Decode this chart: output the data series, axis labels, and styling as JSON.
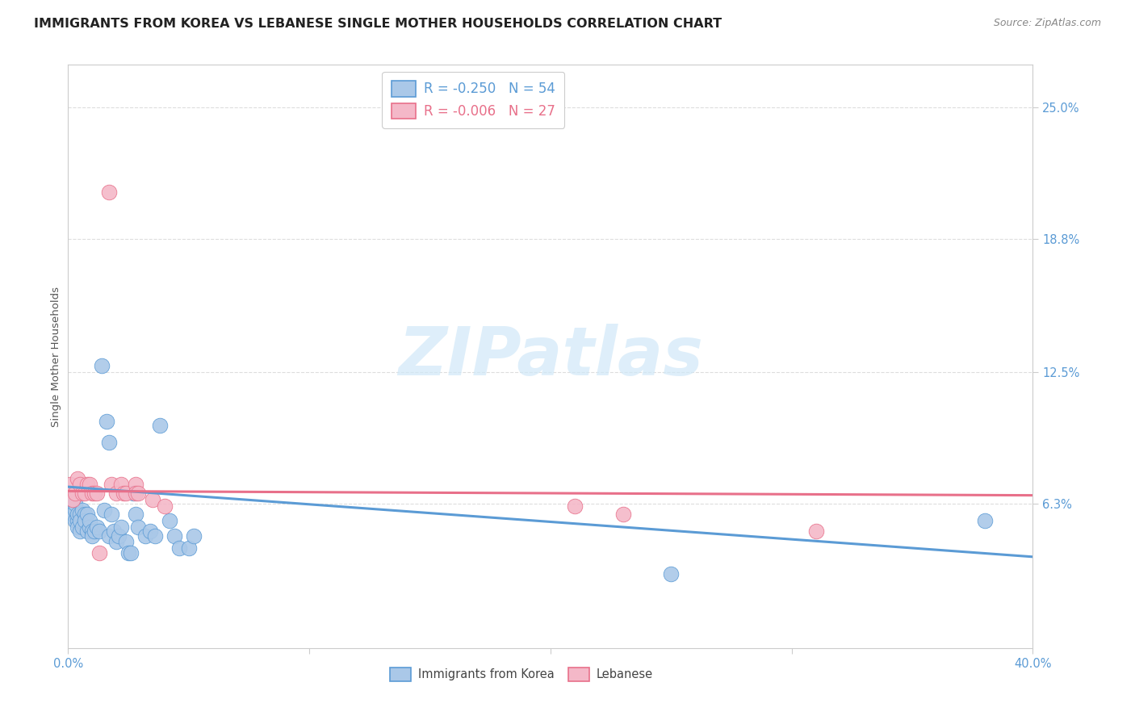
{
  "title": "IMMIGRANTS FROM KOREA VS LEBANESE SINGLE MOTHER HOUSEHOLDS CORRELATION CHART",
  "source": "Source: ZipAtlas.com",
  "ylabel": "Single Mother Households",
  "xlim": [
    0.0,
    0.4
  ],
  "ylim": [
    -0.005,
    0.27
  ],
  "yticks": [
    0.063,
    0.125,
    0.188,
    0.25
  ],
  "ytick_labels": [
    "6.3%",
    "12.5%",
    "18.8%",
    "25.0%"
  ],
  "xticks": [
    0.0,
    0.1,
    0.2,
    0.3,
    0.4
  ],
  "xtick_labels": [
    "0.0%",
    "",
    "",
    "",
    "40.0%"
  ],
  "legend_korea_label": "R = -0.250   N = 54",
  "legend_leb_label": "R = -0.006   N = 27",
  "korea_scatter": [
    [
      0.001,
      0.068
    ],
    [
      0.001,
      0.062
    ],
    [
      0.002,
      0.06
    ],
    [
      0.002,
      0.058
    ],
    [
      0.002,
      0.065
    ],
    [
      0.003,
      0.055
    ],
    [
      0.003,
      0.06
    ],
    [
      0.003,
      0.063
    ],
    [
      0.004,
      0.055
    ],
    [
      0.004,
      0.058
    ],
    [
      0.004,
      0.052
    ],
    [
      0.005,
      0.058
    ],
    [
      0.005,
      0.05
    ],
    [
      0.005,
      0.055
    ],
    [
      0.006,
      0.06
    ],
    [
      0.006,
      0.052
    ],
    [
      0.007,
      0.058
    ],
    [
      0.007,
      0.055
    ],
    [
      0.008,
      0.05
    ],
    [
      0.008,
      0.058
    ],
    [
      0.009,
      0.052
    ],
    [
      0.009,
      0.055
    ],
    [
      0.01,
      0.05
    ],
    [
      0.01,
      0.048
    ],
    [
      0.011,
      0.05
    ],
    [
      0.012,
      0.052
    ],
    [
      0.013,
      0.05
    ],
    [
      0.014,
      0.128
    ],
    [
      0.015,
      0.06
    ],
    [
      0.016,
      0.102
    ],
    [
      0.017,
      0.092
    ],
    [
      0.017,
      0.048
    ],
    [
      0.018,
      0.058
    ],
    [
      0.019,
      0.05
    ],
    [
      0.02,
      0.045
    ],
    [
      0.021,
      0.048
    ],
    [
      0.022,
      0.052
    ],
    [
      0.024,
      0.045
    ],
    [
      0.025,
      0.04
    ],
    [
      0.026,
      0.04
    ],
    [
      0.027,
      0.068
    ],
    [
      0.028,
      0.058
    ],
    [
      0.029,
      0.052
    ],
    [
      0.032,
      0.048
    ],
    [
      0.034,
      0.05
    ],
    [
      0.036,
      0.048
    ],
    [
      0.038,
      0.1
    ],
    [
      0.042,
      0.055
    ],
    [
      0.044,
      0.048
    ],
    [
      0.046,
      0.042
    ],
    [
      0.05,
      0.042
    ],
    [
      0.052,
      0.048
    ],
    [
      0.25,
      0.03
    ],
    [
      0.38,
      0.055
    ]
  ],
  "lebanese_scatter": [
    [
      0.001,
      0.072
    ],
    [
      0.002,
      0.065
    ],
    [
      0.003,
      0.068
    ],
    [
      0.004,
      0.075
    ],
    [
      0.005,
      0.072
    ],
    [
      0.006,
      0.068
    ],
    [
      0.007,
      0.068
    ],
    [
      0.008,
      0.072
    ],
    [
      0.009,
      0.072
    ],
    [
      0.01,
      0.068
    ],
    [
      0.011,
      0.068
    ],
    [
      0.012,
      0.068
    ],
    [
      0.013,
      0.04
    ],
    [
      0.017,
      0.21
    ],
    [
      0.018,
      0.072
    ],
    [
      0.02,
      0.068
    ],
    [
      0.022,
      0.072
    ],
    [
      0.023,
      0.068
    ],
    [
      0.024,
      0.068
    ],
    [
      0.028,
      0.072
    ],
    [
      0.028,
      0.068
    ],
    [
      0.029,
      0.068
    ],
    [
      0.035,
      0.065
    ],
    [
      0.04,
      0.062
    ],
    [
      0.21,
      0.062
    ],
    [
      0.23,
      0.058
    ],
    [
      0.31,
      0.05
    ]
  ],
  "korea_line": [
    [
      0.0,
      0.071
    ],
    [
      0.4,
      0.038
    ]
  ],
  "lebanese_line": [
    [
      0.0,
      0.069
    ],
    [
      0.4,
      0.067
    ]
  ],
  "korea_color": "#5b9bd5",
  "lebanese_color": "#e8708a",
  "korea_fill": "#aac8e8",
  "lebanese_fill": "#f4b8c8",
  "watermark_text": "ZIPatlas",
  "watermark_color": "#d0e8f8",
  "background_color": "#ffffff",
  "grid_color": "#dddddd",
  "grid_style": "--",
  "title_color": "#222222",
  "title_fontsize": 11.5,
  "source_color": "#888888",
  "ylabel_color": "#555555",
  "tick_color": "#5b9bd5",
  "legend_text_color": "#5b9bd5"
}
